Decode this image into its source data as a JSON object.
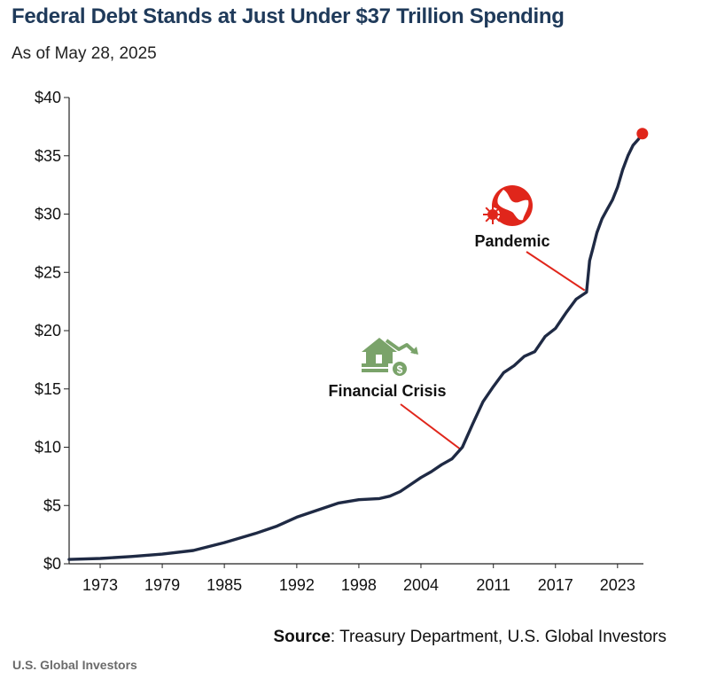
{
  "header": {
    "title": "Federal Debt Stands at Just Under $37 Trillion Spending",
    "subtitle": "As of May 28, 2025"
  },
  "source": {
    "label": "Source",
    "text": ": Treasury Department, U.S. Global Investors"
  },
  "footer": {
    "brand": "U.S. Global Investors"
  },
  "colors": {
    "line": "#1f2a44",
    "endpoint": "#e0261b",
    "pandemic_icon": "#e0261b",
    "financial_icon": "#7aa36a",
    "callout": "#e0261b"
  },
  "annotations": [
    {
      "label": "Pandemic",
      "icon": "globe-virus-icon",
      "x": 2020.0,
      "y": 23.3
    },
    {
      "label": "Financial Crisis",
      "icon": "house-falling-arrow-icon",
      "x": 2008.1,
      "y": 9.6
    }
  ],
  "chart_data": {
    "type": "line",
    "title": "Federal Debt Stands at Just Under $37 Trillion Spending",
    "subtitle": "As of May 28, 2025",
    "xlabel": "",
    "ylabel": "",
    "xlim": [
      1970,
      2025.5
    ],
    "ylim": [
      0,
      40
    ],
    "x_ticks": [
      1973,
      1979,
      1985,
      1992,
      1998,
      2004,
      2011,
      2017,
      2023
    ],
    "y_ticks": [
      0,
      5,
      10,
      15,
      20,
      25,
      30,
      35,
      40
    ],
    "y_tick_labels": [
      "$0",
      "$5",
      "$10",
      "$15",
      "$20",
      "$25",
      "$30",
      "$35",
      "$40"
    ],
    "grid": false,
    "series": [
      {
        "x": [
          1970,
          1973,
          1976,
          1979,
          1982,
          1985,
          1988,
          1990,
          1992,
          1994,
          1996,
          1998,
          2000,
          2001,
          2002,
          2003,
          2004,
          2005,
          2006,
          2007,
          2008,
          2009,
          2010,
          2011,
          2012,
          2013,
          2014,
          2015,
          2016,
          2017,
          2018,
          2019,
          2020,
          2020.3,
          2020.6,
          2021,
          2021.5,
          2022,
          2022.5,
          2023,
          2023.5,
          2024,
          2024.5,
          2025,
          2025.4
        ],
        "y": [
          0.37,
          0.46,
          0.62,
          0.83,
          1.14,
          1.82,
          2.6,
          3.2,
          4.0,
          4.6,
          5.2,
          5.5,
          5.6,
          5.8,
          6.2,
          6.8,
          7.4,
          7.9,
          8.5,
          9.0,
          10.0,
          12.0,
          13.9,
          15.2,
          16.4,
          17.0,
          17.8,
          18.2,
          19.5,
          20.2,
          21.5,
          22.7,
          23.3,
          26.0,
          27.0,
          28.4,
          29.6,
          30.4,
          31.2,
          32.3,
          33.8,
          35.0,
          35.9,
          36.4,
          36.9
        ]
      }
    ],
    "endpoint": {
      "x": 2025.4,
      "y": 36.9
    },
    "annotations": [
      {
        "label": "Pandemic",
        "x": 2020.0,
        "y": 23.3
      },
      {
        "label": "Financial Crisis",
        "x": 2008.1,
        "y": 9.6
      }
    ]
  }
}
